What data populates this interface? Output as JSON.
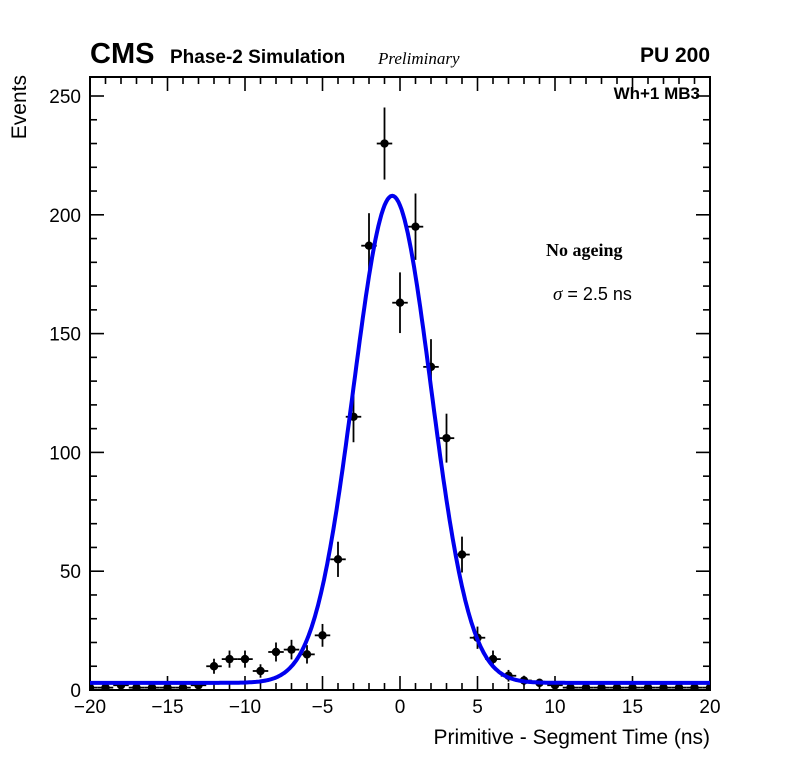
{
  "header": {
    "experiment": "CMS",
    "simulation_label": "Phase-2 Simulation",
    "preliminary_label": "Preliminary",
    "pileup_label": "PU 200"
  },
  "annotations": {
    "chamber_label": "Wh+1 MB3",
    "ageing_label": "No ageing",
    "sigma_symbol": "σ",
    "sigma_value": " = 2.5 ns"
  },
  "chart_data": {
    "type": "scatter",
    "title": "",
    "xlabel": "Primitive - Segment Time (ns)",
    "ylabel": "Events",
    "xlim": [
      -20,
      20
    ],
    "ylim": [
      0,
      258
    ],
    "grid": false,
    "legend": "none",
    "x_major_ticks": [
      -20,
      -15,
      -10,
      -5,
      0,
      5,
      10,
      15,
      20
    ],
    "x_tick_labels": [
      "−20",
      "−15",
      "−10",
      "−5",
      "0",
      "5",
      "10",
      "15",
      "20"
    ],
    "x_minor_step": 1,
    "y_major_ticks": [
      0,
      50,
      100,
      150,
      200,
      250
    ],
    "y_tick_labels": [
      "0",
      "50",
      "100",
      "150",
      "200",
      "250"
    ],
    "y_minor_step": 10,
    "marker_color": "#000000",
    "points": {
      "x": [
        -20,
        -19,
        -18,
        -17,
        -16,
        -15,
        -14,
        -13,
        -12,
        -11,
        -10,
        -9,
        -8,
        -7,
        -6,
        -5,
        -4,
        -3,
        -2,
        -1,
        0,
        1,
        2,
        3,
        4,
        5,
        6,
        7,
        8,
        9,
        10,
        11,
        12,
        13,
        14,
        15,
        16,
        17,
        18,
        19,
        20
      ],
      "y": [
        1,
        1,
        2,
        1,
        1,
        1,
        1,
        2,
        10,
        13,
        13,
        8,
        16,
        17,
        15,
        23,
        55,
        115,
        187,
        230,
        163,
        195,
        136,
        106,
        57,
        22,
        13,
        6,
        4,
        3,
        2,
        1,
        1,
        1,
        1,
        1,
        1,
        1,
        1,
        1,
        1
      ],
      "xerr": 0.5,
      "yerr_mode": "sqrt"
    },
    "fit": {
      "shape": "gaussian_plus_constant",
      "amplitude": 205,
      "mean": -0.5,
      "sigma": 2.5,
      "constant": 3,
      "color": "#0000ee"
    }
  }
}
